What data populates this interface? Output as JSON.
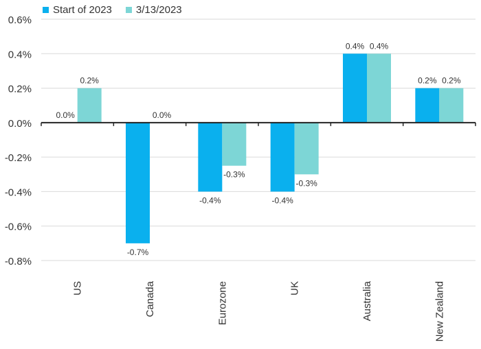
{
  "chart_data": {
    "type": "bar",
    "title": "",
    "xlabel": "",
    "ylabel": "",
    "categories": [
      "US",
      "Canada",
      "Eurozone",
      "UK",
      "Australia",
      "New Zealand"
    ],
    "series": [
      {
        "name": "Start of 2023",
        "color": "#0ab0ee",
        "values": [
          0.0,
          -0.7,
          -0.4,
          -0.4,
          0.4,
          0.2
        ],
        "labels": [
          "0.0%",
          "-0.7%",
          "-0.4%",
          "-0.4%",
          "0.4%",
          "0.2%"
        ]
      },
      {
        "name": "3/13/2023",
        "color": "#7dd6d6",
        "values": [
          0.2,
          0.0,
          -0.25,
          -0.3,
          0.4,
          0.2
        ],
        "labels": [
          "0.2%",
          "0.0%",
          "-0.3%",
          "-0.3%",
          "0.4%",
          "0.2%"
        ]
      }
    ],
    "ylim": [
      -0.8,
      0.6
    ],
    "yticks": [
      0.6,
      0.4,
      0.2,
      0.0,
      -0.2,
      -0.4,
      -0.6,
      -0.8
    ],
    "ytick_labels": [
      "0.6%",
      "0.4%",
      "0.2%",
      "0.0%",
      "-0.2%",
      "-0.4%",
      "-0.6%",
      "-0.8%"
    ],
    "grid": true,
    "legend": "top-left"
  }
}
